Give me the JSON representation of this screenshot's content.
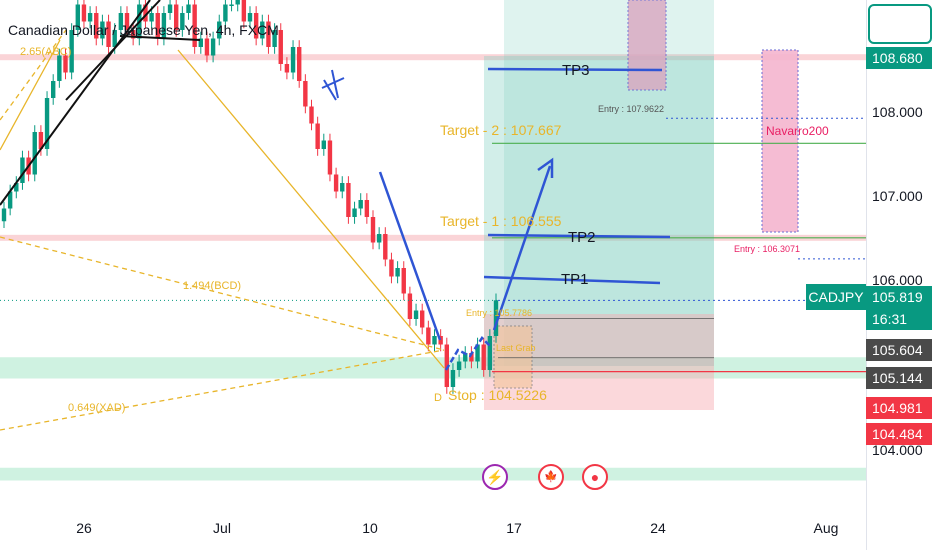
{
  "header": {
    "title": "Canadian Dollar / Japanese Yen, 4h, FXCM"
  },
  "symbol": "CADJPY",
  "price_labels": [
    "108.000",
    "107.000",
    "106.000",
    "104.000"
  ],
  "badges": [
    {
      "text": "108.680",
      "color": "#089981",
      "price": 108.68
    },
    {
      "text": "105.819",
      "color": "#089981",
      "price": 105.819
    },
    {
      "text": "16:31",
      "color": "#089981"
    },
    {
      "text": "105.604",
      "color": "#4a4a4a",
      "price": 105.604
    },
    {
      "text": "105.144",
      "color": "#4a4a4a",
      "price": 105.144
    },
    {
      "text": "104.981",
      "color": "#f23645",
      "price": 104.981
    },
    {
      "text": "104.484",
      "color": "#f23645",
      "price": 104.484
    }
  ],
  "time_labels": [
    "26",
    "Jul",
    "10",
    "17",
    "24",
    "Aug"
  ],
  "annotations": {
    "tp1": "TP1",
    "tp2": "TP2",
    "tp3": "TP3",
    "target1": "Target - 1 : 106.555",
    "target2": "Target - 2 : 107.667",
    "stop": "Stop : 104.5226",
    "entry_a": "Entry : 107.9622",
    "entry_b": "Entry : 106.3071",
    "entry_c": "Entry : 105.7786",
    "last_grab": "Last Grab",
    "navarro": "Navarro200",
    "fib_1": "1.494(BCD)",
    "fib_2": "0.649(XAD)",
    "fib_3": "2.65(ABC)",
    "point_d": "D"
  },
  "colors": {
    "up": "#089981",
    "down": "#f23645",
    "accent": "#2f55d4",
    "fib": "#e8b52a",
    "zone": "#a8e8c8"
  },
  "icons": [
    "lightning-icon",
    "canada-flag-icon",
    "record-icon"
  ],
  "chart_data": {
    "type": "candlestick",
    "title": "Canadian Dollar / Japanese Yen, 4h, FXCM",
    "ylim": [
      103.8,
      109.4
    ],
    "closes": [
      106.9,
      107.1,
      107.2,
      107.5,
      107.3,
      107.8,
      107.6,
      108.2,
      108.4,
      108.7,
      108.5,
      109.0,
      109.3,
      109.1,
      109.2,
      108.9,
      109.1,
      108.8,
      109.0,
      109.2,
      109.0,
      108.9,
      109.3,
      109.1,
      109.2,
      108.9,
      109.2,
      109.3,
      109.0,
      109.2,
      109.3,
      108.8,
      108.9,
      108.7,
      108.9,
      109.1,
      109.3,
      109.3,
      109.4,
      109.1,
      109.2,
      108.9,
      109.1,
      108.8,
      109.0,
      108.6,
      108.5,
      108.8,
      108.4,
      108.1,
      107.9,
      107.6,
      107.7,
      107.3,
      107.1,
      107.2,
      106.8,
      106.9,
      107.0,
      106.8,
      106.5,
      106.6,
      106.3,
      106.1,
      106.2,
      105.9,
      105.6,
      105.7,
      105.5,
      105.3,
      105.4,
      105.3,
      104.8,
      105.0,
      105.1,
      105.2,
      105.1,
      105.3,
      105.0,
      105.4,
      105.82
    ],
    "last_price": 105.819,
    "support_zones": [
      [
        104.9,
        105.15
      ],
      [
        103.7,
        103.85
      ]
    ],
    "resistance_lines": [
      108.68,
      106.555
    ],
    "targets": [
      {
        "label": "Target - 1",
        "value": 106.555
      },
      {
        "label": "Target - 2",
        "value": 107.667
      }
    ],
    "stop": 104.5226,
    "entries": [
      107.9622,
      106.3071,
      105.7786
    ]
  }
}
